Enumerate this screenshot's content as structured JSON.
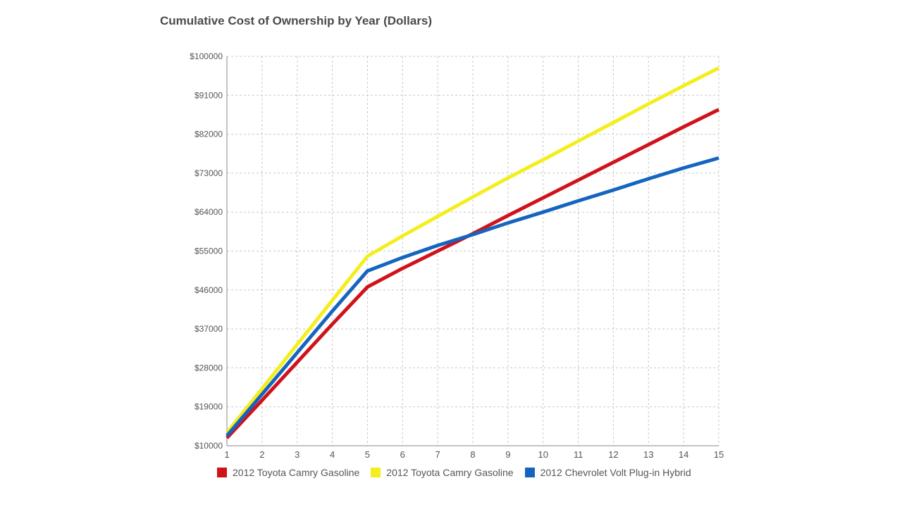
{
  "chart_data": {
    "type": "line",
    "title": "Cumulative Cost of Ownership by Year (Dollars)",
    "xlabel": "",
    "ylabel": "",
    "x": [
      1,
      2,
      3,
      4,
      5,
      6,
      7,
      8,
      9,
      10,
      11,
      12,
      13,
      14,
      15
    ],
    "xlim": [
      1,
      15
    ],
    "ylim": [
      10000,
      100000
    ],
    "yticks": [
      "$10000",
      "$19000",
      "$28000",
      "$37000",
      "$46000",
      "$55000",
      "$64000",
      "$73000",
      "$82000",
      "$91000",
      "$100000"
    ],
    "ytick_values": [
      10000,
      19000,
      28000,
      37000,
      46000,
      55000,
      64000,
      73000,
      82000,
      91000,
      100000
    ],
    "xticks": [
      "1",
      "2",
      "3",
      "4",
      "5",
      "6",
      "7",
      "8",
      "9",
      "10",
      "11",
      "12",
      "13",
      "14",
      "15"
    ],
    "grid": true,
    "legend_position": "bottom",
    "series": [
      {
        "name": "2012 Toyota Camry Gasoline",
        "color": "#d0121b",
        "values": [
          11800,
          20500,
          29300,
          38100,
          46700,
          51000,
          55000,
          59000,
          63200,
          67300,
          71400,
          75500,
          79600,
          83700,
          87700
        ]
      },
      {
        "name": "2012 Toyota Camry Gasoline",
        "color": "#f4ee1d",
        "values": [
          13000,
          23200,
          33400,
          43600,
          53800,
          58500,
          63000,
          67500,
          71900,
          76100,
          80400,
          84700,
          89000,
          93200,
          97300
        ]
      },
      {
        "name": "2012 Chevrolet Volt Plug-in Hybrid",
        "color": "#1565c0",
        "values": [
          12300,
          21900,
          31500,
          41100,
          50400,
          53500,
          56300,
          58800,
          61500,
          64000,
          66600,
          69100,
          71700,
          74200,
          76500
        ]
      }
    ]
  }
}
